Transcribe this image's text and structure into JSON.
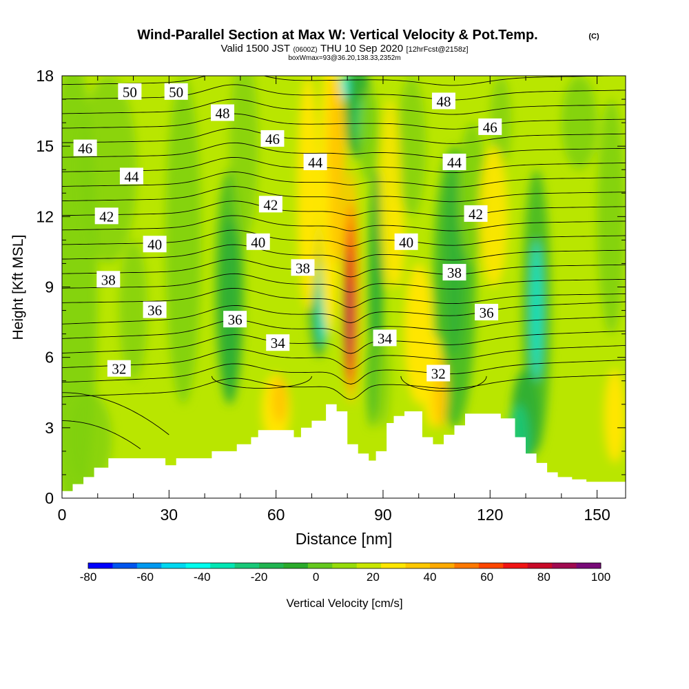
{
  "title": {
    "main": "Wind-Parallel Section at Max W: Vertical Velocity & Pot.Temp.",
    "copyright": "(C)",
    "valid_prefix": "Valid 1500 JST",
    "valid_zulu": "(0600Z)",
    "valid_date": "THU 10 Sep 2020",
    "forecast": "[12hrFcst@2158z]",
    "boxinfo": "boxWmax=93@36.20,138.33,2352m"
  },
  "colorbar": {
    "label": "Vertical Velocity [cm/s]",
    "tick_labels": [
      "-80",
      "-60",
      "-40",
      "-20",
      "0",
      "20",
      "40",
      "60",
      "80",
      "100"
    ],
    "colors": [
      "#0000ff",
      "#0055ee",
      "#0099f0",
      "#00d8f0",
      "#00ffee",
      "#00e6b4",
      "#18c878",
      "#20b450",
      "#2aaa2a",
      "#64c81e",
      "#96dc0a",
      "#c8e600",
      "#ffe600",
      "#ffc800",
      "#ffaa00",
      "#ff7800",
      "#ff4600",
      "#f01414",
      "#c80a28",
      "#a00a50",
      "#780a78"
    ]
  },
  "colors": {
    "ground": "#ffffff",
    "contour": "#000000"
  },
  "chart_data": {
    "type": "heatmap",
    "title": "Wind-Parallel Section at Max W: Vertical Velocity & Pot.Temp.",
    "xlabel": "Distance [nm]",
    "ylabel": "Height [Kft MSL]",
    "xlim": [
      0,
      158
    ],
    "ylim": [
      0,
      18
    ],
    "xticks": [
      0,
      30,
      60,
      90,
      120,
      150
    ],
    "yticks": [
      0,
      3,
      6,
      9,
      12,
      15,
      18
    ],
    "filled_variable": "Vertical Velocity [cm/s]",
    "color_levels": [
      -80,
      -60,
      -40,
      -20,
      0,
      20,
      40,
      60,
      80,
      100
    ],
    "contour_variable": "Pot.Temp.",
    "contour_labels": [
      {
        "text": "50",
        "x": 19,
        "y": 17.3
      },
      {
        "text": "50",
        "x": 32,
        "y": 17.3
      },
      {
        "text": "48",
        "x": 45,
        "y": 16.4
      },
      {
        "text": "48",
        "x": 107,
        "y": 16.9
      },
      {
        "text": "46",
        "x": 6.5,
        "y": 14.9
      },
      {
        "text": "46",
        "x": 59,
        "y": 15.3
      },
      {
        "text": "46",
        "x": 120,
        "y": 15.8
      },
      {
        "text": "44",
        "x": 19.5,
        "y": 13.7
      },
      {
        "text": "44",
        "x": 71,
        "y": 14.3
      },
      {
        "text": "44",
        "x": 110,
        "y": 14.3
      },
      {
        "text": "42",
        "x": 12.5,
        "y": 12.0
      },
      {
        "text": "42",
        "x": 58.5,
        "y": 12.5
      },
      {
        "text": "42",
        "x": 116,
        "y": 12.1
      },
      {
        "text": "40",
        "x": 26,
        "y": 10.8
      },
      {
        "text": "40",
        "x": 55,
        "y": 10.9
      },
      {
        "text": "40",
        "x": 96.5,
        "y": 10.9
      },
      {
        "text": "38",
        "x": 13,
        "y": 9.3
      },
      {
        "text": "38",
        "x": 67.5,
        "y": 9.8
      },
      {
        "text": "38",
        "x": 110,
        "y": 9.6
      },
      {
        "text": "36",
        "x": 26,
        "y": 8.0
      },
      {
        "text": "36",
        "x": 48.5,
        "y": 7.6
      },
      {
        "text": "36",
        "x": 119,
        "y": 7.9
      },
      {
        "text": "34",
        "x": 60.5,
        "y": 6.6
      },
      {
        "text": "34",
        "x": 90.5,
        "y": 6.8
      },
      {
        "text": "32",
        "x": 16,
        "y": 5.5
      },
      {
        "text": "32",
        "x": 105.5,
        "y": 5.3
      }
    ],
    "terrain": {
      "x": [
        0,
        3,
        6,
        9,
        13,
        22,
        29,
        32,
        37,
        42,
        49,
        53,
        55,
        60,
        65,
        67,
        70,
        74,
        77,
        80,
        83,
        86,
        88,
        91,
        93,
        96,
        101,
        104,
        107,
        110,
        113,
        118,
        123,
        127,
        130,
        133,
        136,
        139,
        143,
        147,
        158
      ],
      "y": [
        0.3,
        0.6,
        0.9,
        1.3,
        1.7,
        1.7,
        1.4,
        1.7,
        1.7,
        2.0,
        2.3,
        2.6,
        2.9,
        2.9,
        2.6,
        3.0,
        3.3,
        4.0,
        3.7,
        2.3,
        1.9,
        1.6,
        2.0,
        3.2,
        3.5,
        3.7,
        2.6,
        2.3,
        2.7,
        3.1,
        3.6,
        3.6,
        3.4,
        2.6,
        1.9,
        1.5,
        1.1,
        0.9,
        0.8,
        0.7,
        0.7
      ]
    },
    "updraft_max": {
      "x": 81,
      "y": 7.5,
      "value": 93
    }
  }
}
